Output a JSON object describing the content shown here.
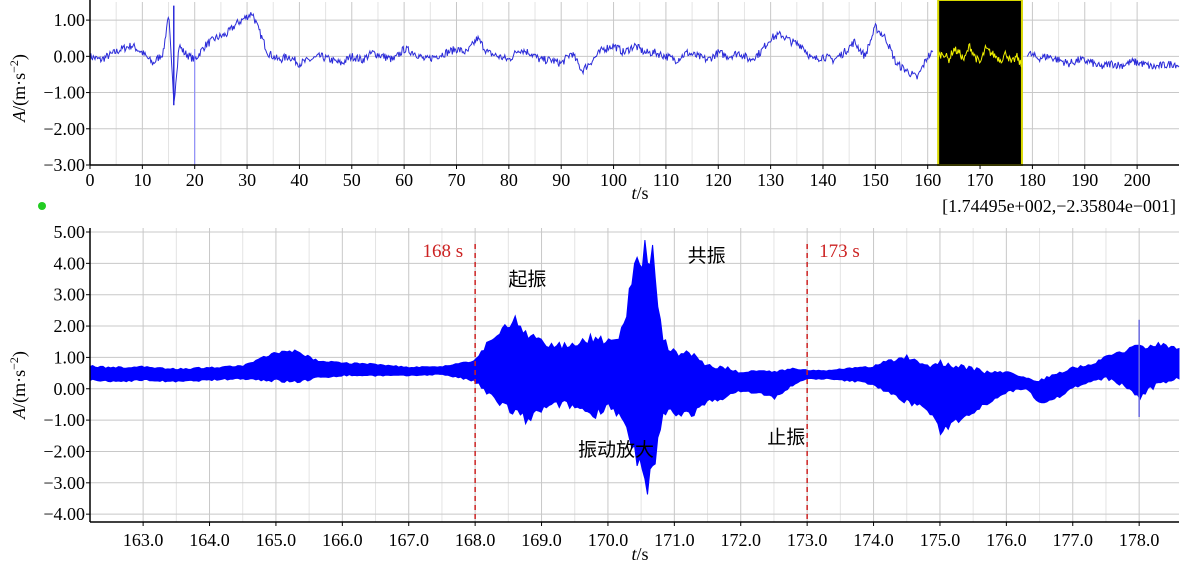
{
  "chart_data": [
    {
      "type": "line",
      "title": "",
      "xlabel_italic": "t",
      "xlabel_unit": "/s",
      "ylabel_italic": "A",
      "ylabel_unit": "/(m·s",
      "ylabel_sup": "−2",
      "ylabel_close": ")",
      "xlim": [
        0,
        208
      ],
      "ylim": [
        -3.0,
        1.5
      ],
      "xticks": [
        0,
        10,
        20,
        30,
        40,
        50,
        60,
        70,
        80,
        90,
        100,
        110,
        120,
        130,
        140,
        150,
        160,
        170,
        180,
        190,
        200
      ],
      "xtick_labels": [
        "0",
        "10",
        "20",
        "30",
        "40",
        "50",
        "60",
        "70",
        "80",
        "90",
        "100",
        "110",
        "120",
        "130",
        "140",
        "150",
        "160",
        "170",
        "180",
        "190",
        "200"
      ],
      "yticks": [
        1.0,
        0.0,
        -1.0,
        -2.0,
        -3.0
      ],
      "ytick_labels": [
        "1.00",
        "0.00",
        "−1.00",
        "−2.00",
        "−3.00"
      ],
      "grid": true,
      "series_color": "#2b2bd9",
      "highlight": {
        "x_range": [
          162,
          178
        ],
        "fill": "#000000",
        "border": "#d8d800",
        "line_color": "#f0f000"
      },
      "cursor_readout": "[1.74495e+002,−2.35804e−001]",
      "series": [
        {
          "x": [
            0,
            2,
            4,
            6,
            8,
            10,
            12,
            14,
            15,
            16,
            17,
            18,
            20,
            22,
            24,
            26,
            28,
            30,
            31,
            32,
            34,
            36,
            38,
            40,
            42,
            44,
            46,
            48,
            50,
            52,
            54,
            56,
            58,
            60,
            62,
            64,
            66,
            68,
            70,
            72,
            74,
            76,
            78,
            80,
            82,
            84,
            86,
            88,
            90,
            92,
            94,
            96,
            98,
            100,
            102,
            104,
            106,
            108,
            110,
            112,
            114,
            116,
            118,
            120,
            122,
            124,
            126,
            128,
            130,
            132,
            134,
            136,
            138,
            140,
            142,
            144,
            146,
            148,
            150,
            152,
            154,
            156,
            158,
            160,
            161
          ],
          "y": [
            0.0,
            -0.1,
            0.05,
            0.2,
            0.3,
            0.1,
            -0.2,
            0.1,
            1.2,
            -1.3,
            0.3,
            0.1,
            -0.1,
            0.3,
            0.5,
            0.6,
            0.9,
            1.1,
            1.2,
            0.8,
            0.1,
            -0.1,
            0.0,
            -0.2,
            -0.1,
            0.0,
            -0.1,
            -0.2,
            0.0,
            -0.1,
            0.1,
            0.0,
            -0.1,
            0.2,
            0.1,
            -0.1,
            0.0,
            0.1,
            0.2,
            0.1,
            0.5,
            0.1,
            0.0,
            -0.1,
            0.2,
            0.1,
            -0.1,
            -0.1,
            -0.2,
            0.1,
            -0.4,
            -0.1,
            0.2,
            0.3,
            0.1,
            0.3,
            0.1,
            0.1,
            0.0,
            -0.1,
            0.1,
            0.0,
            -0.1,
            0.1,
            0.0,
            0.1,
            -0.1,
            0.1,
            0.5,
            0.6,
            0.4,
            0.3,
            -0.1,
            0.0,
            -0.1,
            0.1,
            0.4,
            0.0,
            0.8,
            0.5,
            -0.2,
            -0.4,
            -0.6,
            0.0,
            0.1
          ]
        },
        {
          "x": [
            162,
            163,
            164,
            165,
            166,
            167,
            168,
            169,
            170,
            171,
            172,
            173,
            174,
            175,
            176,
            177,
            178
          ],
          "y": [
            0.0,
            0.1,
            -0.1,
            0.2,
            0.1,
            -0.1,
            0.3,
            0.0,
            -0.2,
            0.2,
            0.1,
            0.0,
            -0.1,
            0.1,
            -0.2,
            0.0,
            -0.3
          ]
        },
        {
          "x": [
            179,
            181,
            183,
            185,
            187,
            189,
            191,
            193,
            195,
            197,
            199,
            201,
            203,
            205,
            207,
            208
          ],
          "y": [
            0.1,
            -0.05,
            0.0,
            -0.1,
            -0.2,
            -0.1,
            -0.15,
            -0.3,
            -0.2,
            -0.25,
            -0.15,
            -0.2,
            -0.3,
            -0.25,
            -0.2,
            -0.25
          ]
        }
      ]
    },
    {
      "type": "area",
      "title": "",
      "xlabel_italic": "t",
      "xlabel_unit": "/s",
      "ylabel_italic": "A",
      "ylabel_unit": "/(m·s",
      "ylabel_sup": "−2",
      "ylabel_close": ")",
      "xlim": [
        162.2,
        178.6
      ],
      "ylim": [
        -4.25,
        5.0
      ],
      "xticks": [
        163.0,
        164.0,
        165.0,
        166.0,
        167.0,
        168.0,
        169.0,
        170.0,
        171.0,
        172.0,
        173.0,
        174.0,
        175.0,
        176.0,
        177.0,
        178.0
      ],
      "xtick_labels": [
        "163.0",
        "164.0",
        "165.0",
        "166.0",
        "167.0",
        "168.0",
        "169.0",
        "170.0",
        "171.0",
        "172.0",
        "173.0",
        "174.0",
        "175.0",
        "176.0",
        "177.0",
        "178.0"
      ],
      "yticks": [
        5.0,
        4.0,
        3.0,
        2.0,
        1.0,
        0.0,
        -1.0,
        -2.0,
        -3.0,
        -4.0
      ],
      "ytick_labels": [
        "5.00",
        "4.00",
        "3.00",
        "2.00",
        "1.00",
        "0.00",
        "−1.00",
        "−2.00",
        "−3.00",
        "−4.00"
      ],
      "grid": true,
      "series_color": "#0000ff",
      "envelope": {
        "x": [
          162.2,
          162.5,
          163.0,
          163.5,
          164.0,
          164.5,
          165.0,
          165.3,
          165.6,
          166.0,
          166.5,
          167.0,
          167.5,
          168.0,
          168.2,
          168.5,
          168.6,
          168.8,
          169.0,
          169.3,
          169.5,
          169.8,
          170.0,
          170.2,
          170.4,
          170.5,
          170.6,
          170.7,
          170.8,
          170.9,
          171.0,
          171.3,
          171.5,
          171.8,
          172.0,
          172.3,
          172.5,
          172.8,
          173.0,
          173.3,
          173.5,
          173.8,
          174.0,
          174.3,
          174.5,
          174.8,
          175.0,
          175.2,
          175.5,
          175.8,
          176.0,
          176.3,
          176.5,
          176.8,
          177.0,
          177.3,
          177.5,
          177.8,
          178.0,
          178.3,
          178.6
        ],
        "upper": [
          0.75,
          0.7,
          0.72,
          0.65,
          0.7,
          0.75,
          1.2,
          1.25,
          0.95,
          0.85,
          0.8,
          0.7,
          0.72,
          0.95,
          1.6,
          2.2,
          2.4,
          1.9,
          1.6,
          1.5,
          1.6,
          1.8,
          1.6,
          2.0,
          4.0,
          4.8,
          4.9,
          4.5,
          2.0,
          1.4,
          1.3,
          1.2,
          0.8,
          0.7,
          0.55,
          0.6,
          0.6,
          0.7,
          0.6,
          0.6,
          0.65,
          0.7,
          0.75,
          1.0,
          1.1,
          0.8,
          1.0,
          0.9,
          0.7,
          0.55,
          0.6,
          0.35,
          0.3,
          0.55,
          0.7,
          0.8,
          1.1,
          1.3,
          1.45,
          1.5,
          1.3
        ],
        "lower": [
          0.25,
          0.2,
          0.25,
          0.2,
          0.25,
          0.3,
          0.2,
          0.15,
          0.3,
          0.4,
          0.4,
          0.4,
          0.45,
          0.2,
          -0.3,
          -0.8,
          -1.0,
          -1.2,
          -0.8,
          -0.6,
          -0.7,
          -1.0,
          -0.6,
          -1.1,
          -2.5,
          -3.3,
          -3.7,
          -3.0,
          -1.2,
          -0.8,
          -0.9,
          -0.9,
          -0.5,
          -0.3,
          -0.1,
          -0.2,
          -0.35,
          0.1,
          0.3,
          0.3,
          0.25,
          0.2,
          0.1,
          -0.3,
          -0.5,
          -0.7,
          -1.5,
          -1.2,
          -0.8,
          -0.4,
          -0.15,
          0.0,
          -0.5,
          -0.3,
          0.0,
          0.2,
          0.3,
          0.0,
          -0.4,
          0.1,
          0.3
        ]
      },
      "spikes": [
        {
          "x": 178.0,
          "y1": -0.9,
          "y2": 2.2
        }
      ],
      "event_lines": [
        {
          "x": 168.0,
          "label": "168 s"
        },
        {
          "x": 173.0,
          "label": "173 s"
        }
      ],
      "event_color": "#cc2222",
      "annotations": [
        {
          "text": "起振",
          "x": 168.5,
          "y": 3.3
        },
        {
          "text": "共振",
          "x": 171.2,
          "y": 4.05
        },
        {
          "text": "振动放大",
          "x": 169.55,
          "y": -2.15
        },
        {
          "text": "止振",
          "x": 172.4,
          "y": -1.75
        }
      ]
    }
  ]
}
